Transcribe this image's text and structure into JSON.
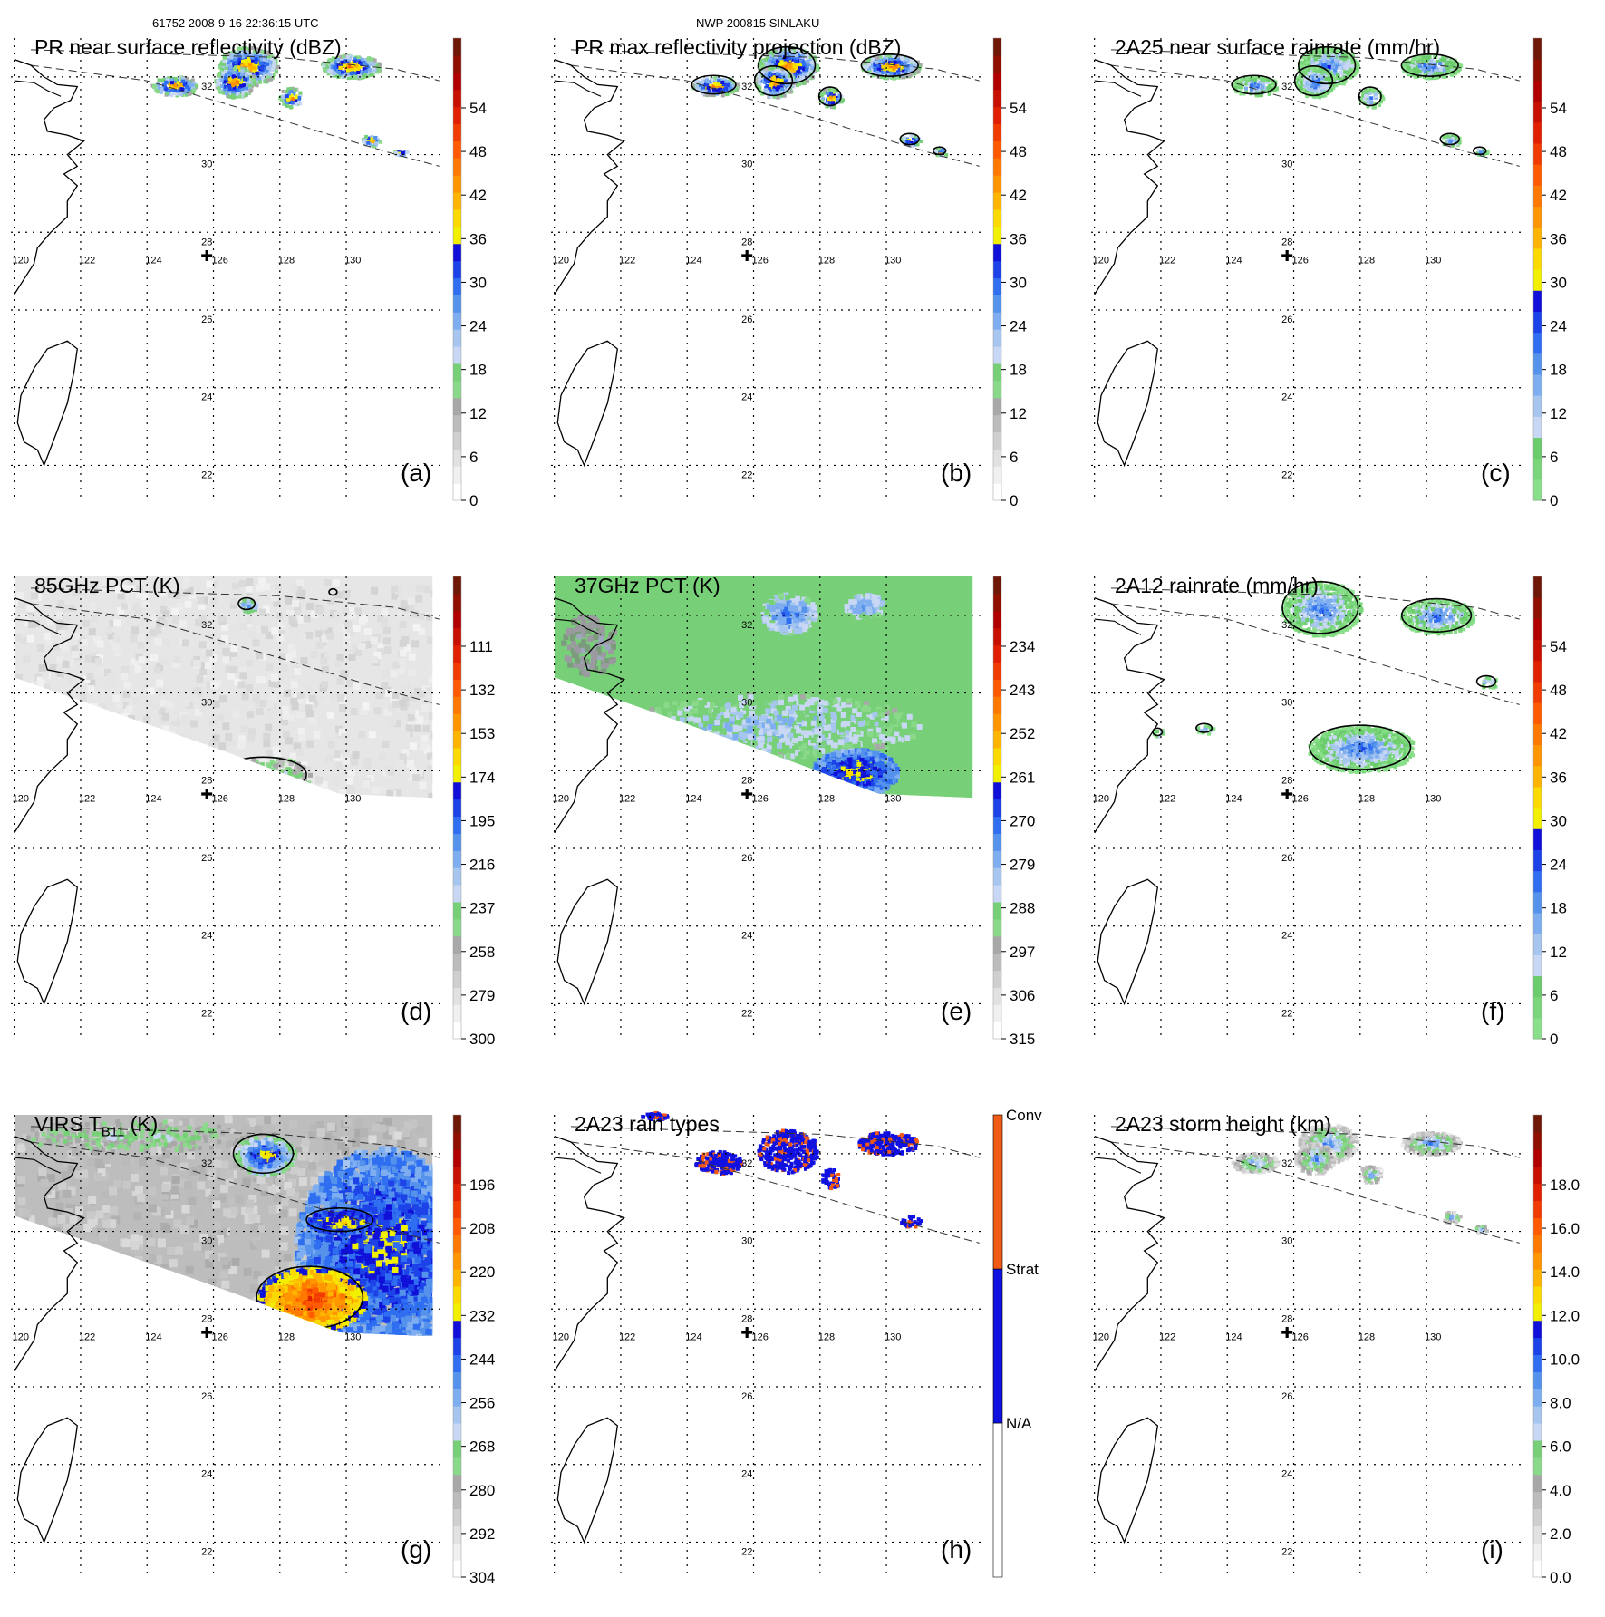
{
  "figure": {
    "header_left": "61752 2008-9-16 22:36:15 UTC",
    "header_center": "NWP 200815 SINLAKU"
  },
  "map_grid": {
    "lon_ticks": [
      "120",
      "122",
      "124",
      "126",
      "128",
      "130"
    ],
    "lat_ticks": [
      "22",
      "24",
      "26",
      "28",
      "30",
      "32"
    ]
  },
  "panels": [
    {
      "id": "a",
      "title": "PR near surface reflectivity (dBZ)",
      "label": "(a)",
      "colorbar": [
        "0",
        "6",
        "12",
        "18",
        "24",
        "30",
        "36",
        "42",
        "48",
        "54"
      ],
      "palette": "reflectivity",
      "field": "pr",
      "contour": false,
      "swath": "pr"
    },
    {
      "id": "b",
      "title": "PR max reflectivity projection (dBZ)",
      "label": "(b)",
      "colorbar": [
        "0",
        "6",
        "12",
        "18",
        "24",
        "30",
        "36",
        "42",
        "48",
        "54"
      ],
      "palette": "reflectivity",
      "field": "pr",
      "contour": true,
      "swath": "pr"
    },
    {
      "id": "c",
      "title": "2A25 near surface rainrate (mm/hr)",
      "label": "(c)",
      "colorbar": [
        "0",
        "6",
        "12",
        "18",
        "24",
        "30",
        "36",
        "42",
        "48",
        "54"
      ],
      "palette": "rainrate",
      "field": "pr",
      "contour": true,
      "swath": "pr"
    },
    {
      "id": "d",
      "title": "85GHz PCT (K)",
      "label": "(d)",
      "colorbar": [
        "300",
        "279",
        "258",
        "237",
        "216",
        "195",
        "174",
        "153",
        "132",
        "111"
      ],
      "palette": "reflectivity",
      "field": "pct85",
      "contour": true,
      "swath": "tmi"
    },
    {
      "id": "e",
      "title": "37GHz PCT (K)",
      "label": "(e)",
      "colorbar": [
        "315",
        "306",
        "297",
        "288",
        "279",
        "270",
        "261",
        "252",
        "243",
        "234"
      ],
      "palette": "reflectivity",
      "field": "pct37",
      "contour": false,
      "swath": "tmi"
    },
    {
      "id": "f",
      "title": "2A12 rainrate (mm/hr)",
      "label": "(f)",
      "colorbar": [
        "0",
        "6",
        "12",
        "18",
        "24",
        "30",
        "36",
        "42",
        "48",
        "54"
      ],
      "palette": "rainrate",
      "field": "rain2a12",
      "contour": true,
      "swath": "tmi_lines"
    },
    {
      "id": "g",
      "title_main": "VIRS T",
      "title_sub": "B11",
      "title_rest": " (K)",
      "label": "(g)",
      "colorbar": [
        "304",
        "292",
        "280",
        "268",
        "256",
        "244",
        "232",
        "220",
        "208",
        "196"
      ],
      "palette": "reflectivity",
      "field": "virs",
      "contour": true,
      "swath": "tmi"
    },
    {
      "id": "h",
      "title": "2A23 rain types",
      "label": "(h)",
      "colorbar": [
        "N/A",
        "Strat",
        "Conv"
      ],
      "palette": "raintype",
      "field": "raintype",
      "contour": false,
      "swath": "pr"
    },
    {
      "id": "i",
      "title": "2A23 storm height (km)",
      "label": "(i)",
      "colorbar": [
        "0.0",
        "2.0",
        "4.0",
        "6.0",
        "8.0",
        "10.0",
        "12.0",
        "14.0",
        "16.0",
        "18.0"
      ],
      "palette": "height",
      "field": "height",
      "contour": false,
      "swath": "pr"
    }
  ],
  "colors": {
    "reflectivity": [
      "#ffffff",
      "#f0f0f0",
      "#e1e1e1",
      "#cfcfcf",
      "#bcbcbc",
      "#a8a8a8",
      "#8ad98a",
      "#77d077",
      "#c8d8f4",
      "#a6c6f0",
      "#7eaef0",
      "#5592ec",
      "#2f6ef0",
      "#1c42e8",
      "#1010d8",
      "#f0f000",
      "#fada00",
      "#ffb400",
      "#ff9600",
      "#ff7800",
      "#ff5a00",
      "#f03c00",
      "#e02000",
      "#c81000",
      "#b00000",
      "#901000",
      "#701808"
    ],
    "rainrate": [
      "#8ae08a",
      "#7ad67a",
      "#6acc6a",
      "#c8d8f4",
      "#a6c6f0",
      "#7eaef0",
      "#5592ec",
      "#2f6ef0",
      "#1c42e8",
      "#1010d8",
      "#f0f000",
      "#fada00",
      "#ffb400",
      "#ff9600",
      "#ff7800",
      "#ff5a00",
      "#f03c00",
      "#e02000",
      "#c81000",
      "#b00000",
      "#901000",
      "#701808"
    ],
    "height": [
      "#ffffff",
      "#f0f0f0",
      "#e1e1e1",
      "#cfcfcf",
      "#bcbcbc",
      "#a8a8a8",
      "#8ad98a",
      "#77d077",
      "#c8d8f4",
      "#a6c6f0",
      "#7eaef0",
      "#5592ec",
      "#2f6ef0",
      "#1c42e8",
      "#1010d8",
      "#f0f000",
      "#fada00",
      "#ffb400",
      "#ff9600",
      "#ff7800",
      "#ff5a00",
      "#f03c00",
      "#e02000",
      "#c81000",
      "#b00000",
      "#901000",
      "#701808"
    ],
    "raintype": [
      "#ffffff",
      "#1010e0",
      "#f05a14"
    ],
    "pct37_bg": "#77d077"
  },
  "chart_data": {
    "type": "heatmap",
    "lon_range": [
      120,
      132
    ],
    "lat_range": [
      21,
      33
    ],
    "storm_center": {
      "lon": 125.8,
      "lat": 27.4
    },
    "panels": [
      "a",
      "b",
      "c",
      "d",
      "e",
      "f",
      "g",
      "h",
      "i"
    ]
  }
}
